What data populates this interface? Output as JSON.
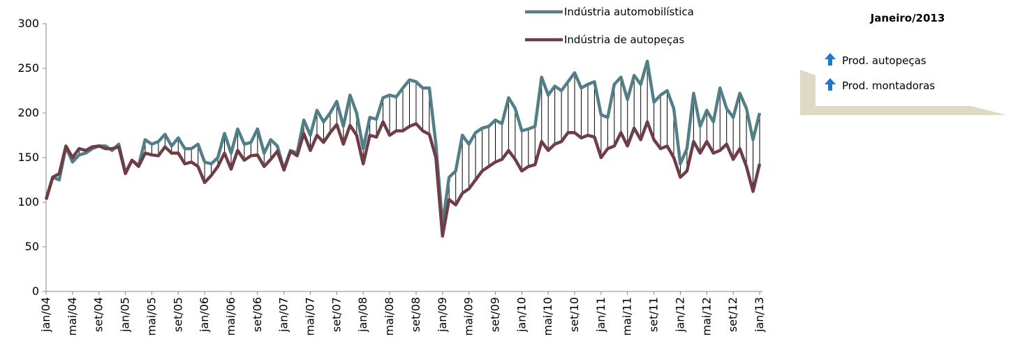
{
  "chart_data": {
    "type": "line",
    "categories": [
      "jan/04",
      null,
      null,
      null,
      "mai/04",
      null,
      null,
      null,
      "set/04",
      null,
      null,
      null,
      "jan/05",
      null,
      null,
      null,
      "mai/05",
      null,
      null,
      null,
      "set/05",
      null,
      null,
      null,
      "jan/06",
      null,
      null,
      null,
      "mai/06",
      null,
      null,
      null,
      "set/06",
      null,
      null,
      null,
      "jan/07",
      null,
      null,
      null,
      "mai/07",
      null,
      null,
      null,
      "set/07",
      null,
      null,
      null,
      "jan/08",
      null,
      null,
      null,
      "mai/08",
      null,
      null,
      null,
      "set/08",
      null,
      null,
      null,
      "jan/09",
      null,
      null,
      null,
      "mai/09",
      null,
      null,
      null,
      "set/09",
      null,
      null,
      null,
      "jan/10",
      null,
      null,
      null,
      "mai/10",
      null,
      null,
      null,
      "set/10",
      null,
      null,
      null,
      "jan/11",
      null,
      null,
      null,
      "mai/11",
      null,
      null,
      null,
      "set/11",
      null,
      null,
      null,
      "jan/12",
      null,
      null,
      null,
      "mai/12",
      null,
      null,
      null,
      "set/12",
      null,
      null,
      null,
      "jan/13"
    ],
    "series": [
      {
        "name": "Indústria automobilística",
        "color": "#527f87",
        "values": [
          103,
          128,
          125,
          162,
          145,
          153,
          155,
          160,
          163,
          163,
          158,
          165,
          133,
          147,
          141,
          170,
          165,
          168,
          176,
          163,
          172,
          160,
          160,
          165,
          145,
          143,
          150,
          177,
          155,
          182,
          165,
          167,
          182,
          155,
          170,
          163,
          137,
          158,
          155,
          192,
          175,
          203,
          190,
          200,
          213,
          185,
          220,
          200,
          160,
          195,
          193,
          217,
          220,
          218,
          228,
          237,
          235,
          228,
          228,
          165,
          75,
          128,
          135,
          175,
          165,
          178,
          183,
          185,
          192,
          188,
          217,
          205,
          180,
          182,
          185,
          240,
          220,
          230,
          225,
          235,
          245,
          228,
          232,
          235,
          198,
          195,
          232,
          240,
          215,
          242,
          232,
          258,
          212,
          220,
          225,
          205,
          143,
          160,
          222,
          185,
          203,
          190,
          228,
          205,
          195,
          222,
          205,
          170,
          200
        ]
      },
      {
        "name": "Indústria de autopeças",
        "color": "#6e3d47",
        "values": [
          103,
          128,
          132,
          163,
          150,
          160,
          158,
          162,
          163,
          160,
          160,
          162,
          132,
          147,
          140,
          155,
          153,
          152,
          162,
          155,
          155,
          143,
          145,
          140,
          122,
          130,
          140,
          155,
          137,
          158,
          147,
          152,
          153,
          140,
          148,
          157,
          136,
          157,
          152,
          177,
          158,
          175,
          167,
          178,
          187,
          165,
          186,
          175,
          143,
          175,
          173,
          190,
          175,
          180,
          180,
          185,
          188,
          180,
          176,
          150,
          62,
          103,
          97,
          110,
          115,
          125,
          135,
          140,
          145,
          148,
          158,
          148,
          135,
          140,
          142,
          168,
          158,
          165,
          168,
          178,
          178,
          172,
          175,
          173,
          150,
          160,
          163,
          178,
          163,
          183,
          170,
          190,
          170,
          160,
          163,
          150,
          128,
          135,
          168,
          155,
          168,
          155,
          158,
          165,
          148,
          160,
          140,
          112,
          143
        ]
      }
    ],
    "ylim": [
      0,
      300
    ],
    "yticks": [
      0,
      50,
      100,
      150,
      200,
      250,
      300
    ],
    "hilo_lines": true
  },
  "panel": {
    "title": "Janeiro/2013",
    "items": [
      "Prod. autopeças",
      "Prod. montadoras"
    ]
  }
}
